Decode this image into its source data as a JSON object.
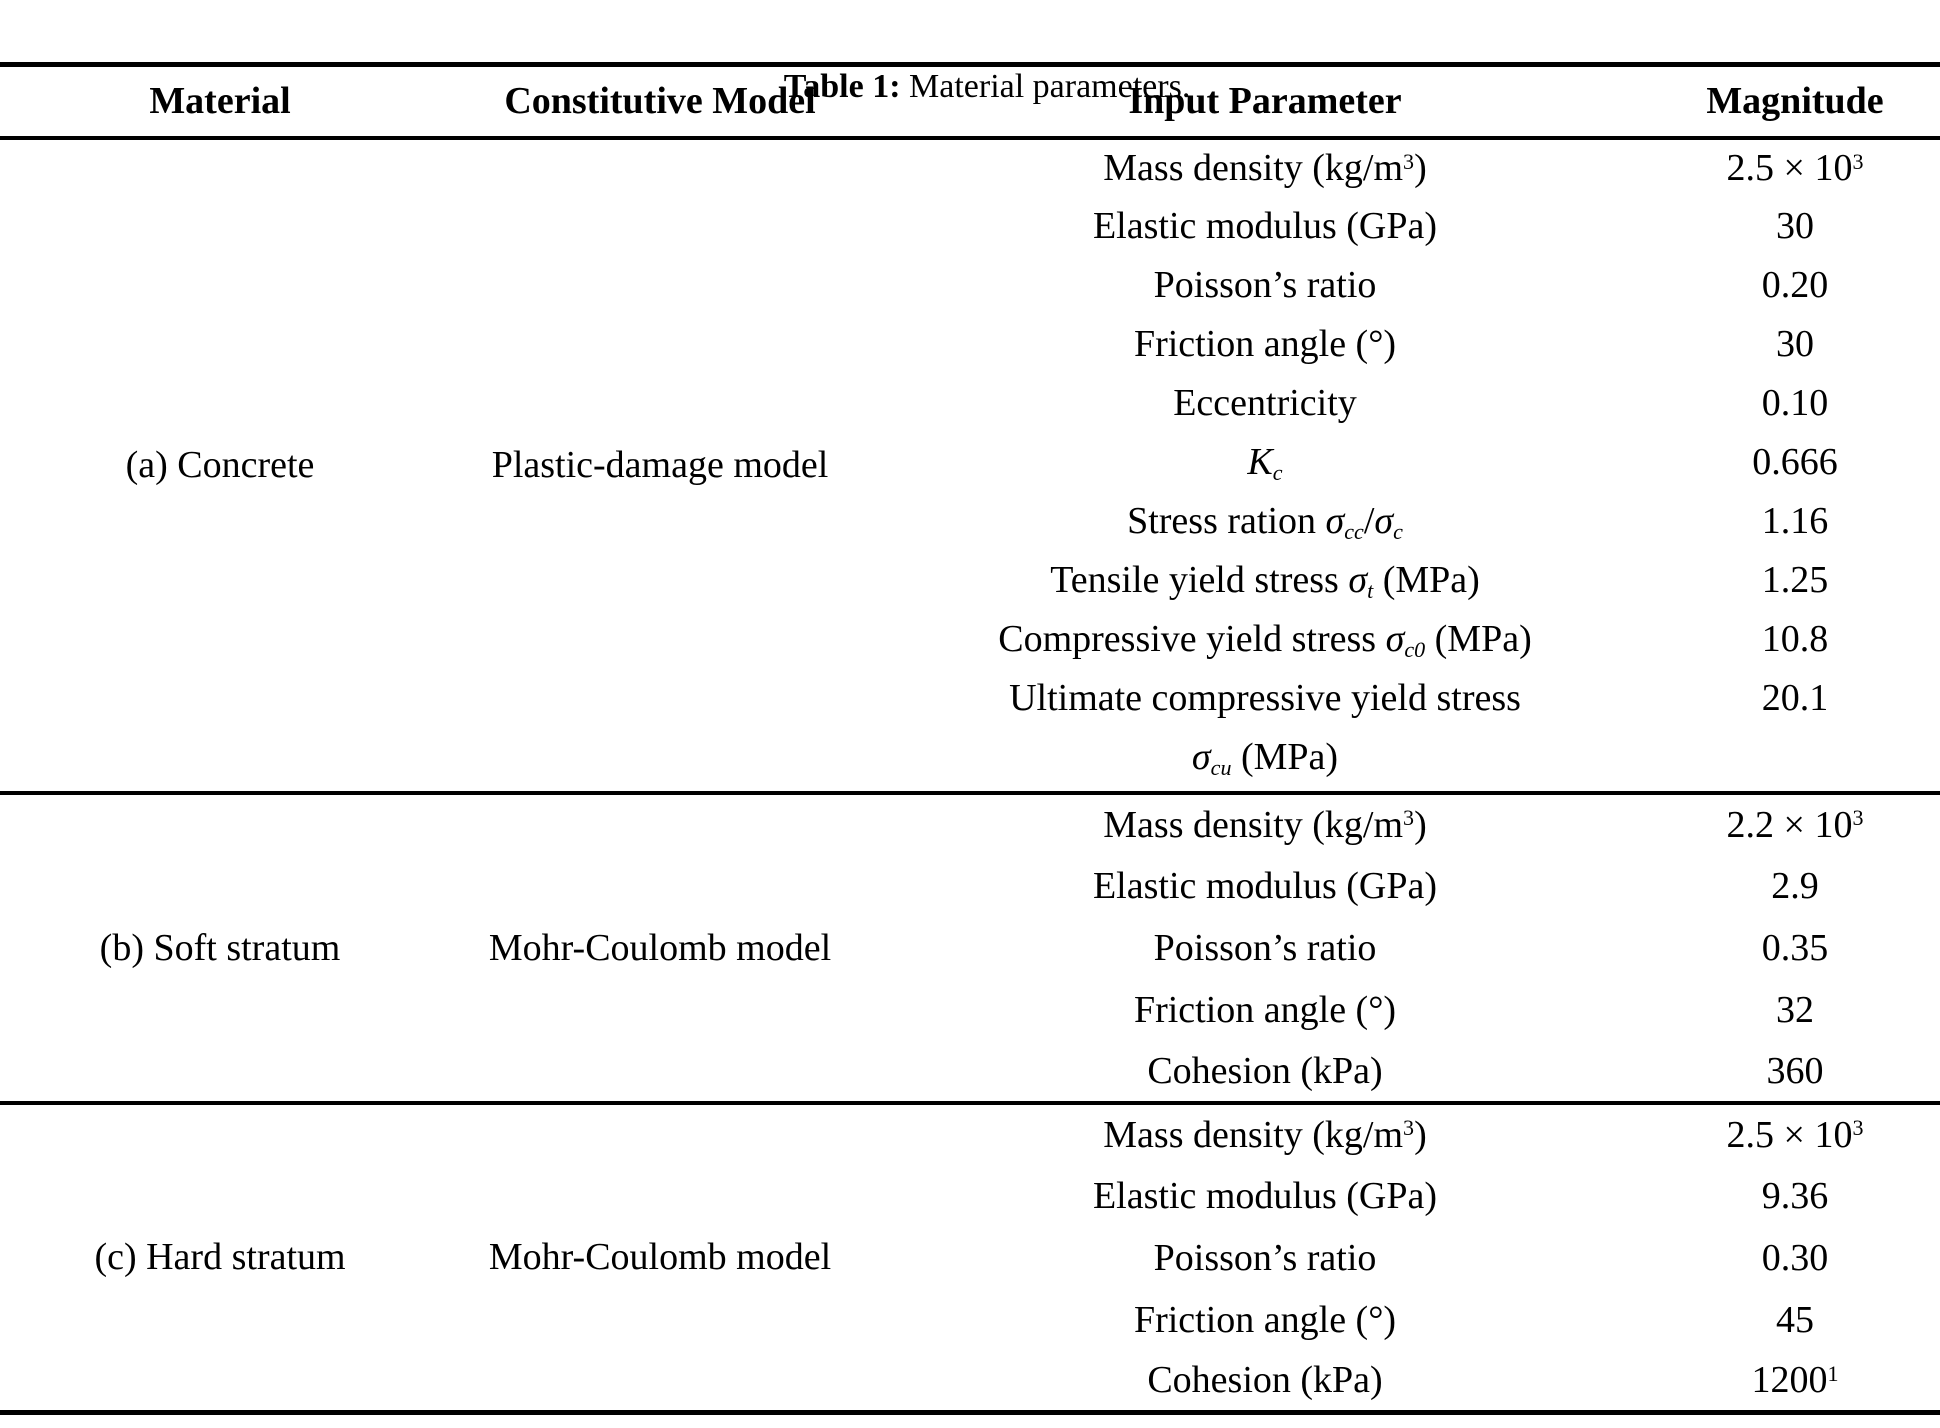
{
  "colors": {
    "background": "#ffffff",
    "text": "#000000",
    "rule": "#000000"
  },
  "caption": {
    "label": "Table 1:",
    "text": " Material parameters."
  },
  "table": {
    "headers": [
      "Material",
      "Constitutive Model",
      "Input Parameter",
      "Magnitude"
    ],
    "sections": [
      {
        "material": "(a) Concrete",
        "model": "Plastic-damage model",
        "rows": [
          {
            "param": [
              {
                "t": "Mass density (kg/m"
              },
              {
                "t": "3",
                "s": "sup"
              },
              {
                "t": ")"
              }
            ],
            "value": [
              {
                "t": "2.5 × 10"
              },
              {
                "t": "3",
                "s": "sup"
              }
            ]
          },
          {
            "param": [
              {
                "t": "Elastic modulus (GPa)"
              }
            ],
            "value": [
              {
                "t": "30"
              }
            ]
          },
          {
            "param": [
              {
                "t": "Poisson’s ratio"
              }
            ],
            "value": [
              {
                "t": "0.20"
              }
            ]
          },
          {
            "param": [
              {
                "t": "Friction angle (°)"
              }
            ],
            "value": [
              {
                "t": "30"
              }
            ]
          },
          {
            "param": [
              {
                "t": "Eccentricity"
              }
            ],
            "value": [
              {
                "t": "0.10"
              }
            ]
          },
          {
            "param": [
              {
                "t": "K",
                "s": "i"
              },
              {
                "t": "c",
                "s": "isub"
              }
            ],
            "value": [
              {
                "t": "0.666"
              }
            ]
          },
          {
            "param": [
              {
                "t": "Stress ration "
              },
              {
                "t": "σ",
                "s": "i"
              },
              {
                "t": "cc",
                "s": "isub"
              },
              {
                "t": "/"
              },
              {
                "t": "σ",
                "s": "i"
              },
              {
                "t": "c",
                "s": "isub"
              }
            ],
            "value": [
              {
                "t": "1.16"
              }
            ]
          },
          {
            "param": [
              {
                "t": "Tensile yield stress "
              },
              {
                "t": "σ",
                "s": "i"
              },
              {
                "t": "t",
                "s": "isub"
              },
              {
                "t": " (MPa)"
              }
            ],
            "value": [
              {
                "t": "1.25"
              }
            ]
          },
          {
            "param": [
              {
                "t": "Compressive yield stress "
              },
              {
                "t": "σ",
                "s": "i"
              },
              {
                "t": "c0",
                "s": "isub"
              },
              {
                "t": " (MPa)"
              }
            ],
            "value": [
              {
                "t": "10.8"
              }
            ]
          },
          {
            "param": [
              {
                "t": "Ultimate compressive yield stress"
              }
            ],
            "param2": [
              {
                "t": "σ",
                "s": "i"
              },
              {
                "t": "cu",
                "s": "isub"
              },
              {
                "t": " (MPa)"
              }
            ],
            "value": [
              {
                "t": "20.1"
              }
            ]
          }
        ]
      },
      {
        "material": "(b) Soft stratum",
        "model": "Mohr-Coulomb model",
        "rows": [
          {
            "param": [
              {
                "t": "Mass density (kg/m"
              },
              {
                "t": "3",
                "s": "sup"
              },
              {
                "t": ")"
              }
            ],
            "value": [
              {
                "t": "2.2 × 10"
              },
              {
                "t": "3",
                "s": "sup"
              }
            ]
          },
          {
            "param": [
              {
                "t": "Elastic modulus (GPa)"
              }
            ],
            "value": [
              {
                "t": "2.9"
              }
            ]
          },
          {
            "param": [
              {
                "t": "Poisson’s ratio"
              }
            ],
            "value": [
              {
                "t": "0.35"
              }
            ]
          },
          {
            "param": [
              {
                "t": "Friction angle (°)"
              }
            ],
            "value": [
              {
                "t": "32"
              }
            ]
          },
          {
            "param": [
              {
                "t": "Cohesion (kPa)"
              }
            ],
            "value": [
              {
                "t": "360"
              }
            ]
          }
        ]
      },
      {
        "material": "(c) Hard stratum",
        "model": "Mohr-Coulomb model",
        "rows": [
          {
            "param": [
              {
                "t": "Mass density (kg/m"
              },
              {
                "t": "3",
                "s": "sup"
              },
              {
                "t": ")"
              }
            ],
            "value": [
              {
                "t": "2.5 × 10"
              },
              {
                "t": "3",
                "s": "sup"
              }
            ]
          },
          {
            "param": [
              {
                "t": "Elastic modulus (GPa)"
              }
            ],
            "value": [
              {
                "t": "9.36"
              }
            ]
          },
          {
            "param": [
              {
                "t": "Poisson’s ratio"
              }
            ],
            "value": [
              {
                "t": "0.30"
              }
            ]
          },
          {
            "param": [
              {
                "t": "Friction angle (°)"
              }
            ],
            "value": [
              {
                "t": "45"
              }
            ]
          },
          {
            "param": [
              {
                "t": "Cohesion (kPa)"
              }
            ],
            "value": [
              {
                "t": "1200"
              },
              {
                "t": "1",
                "s": "sup"
              }
            ]
          }
        ]
      }
    ]
  }
}
